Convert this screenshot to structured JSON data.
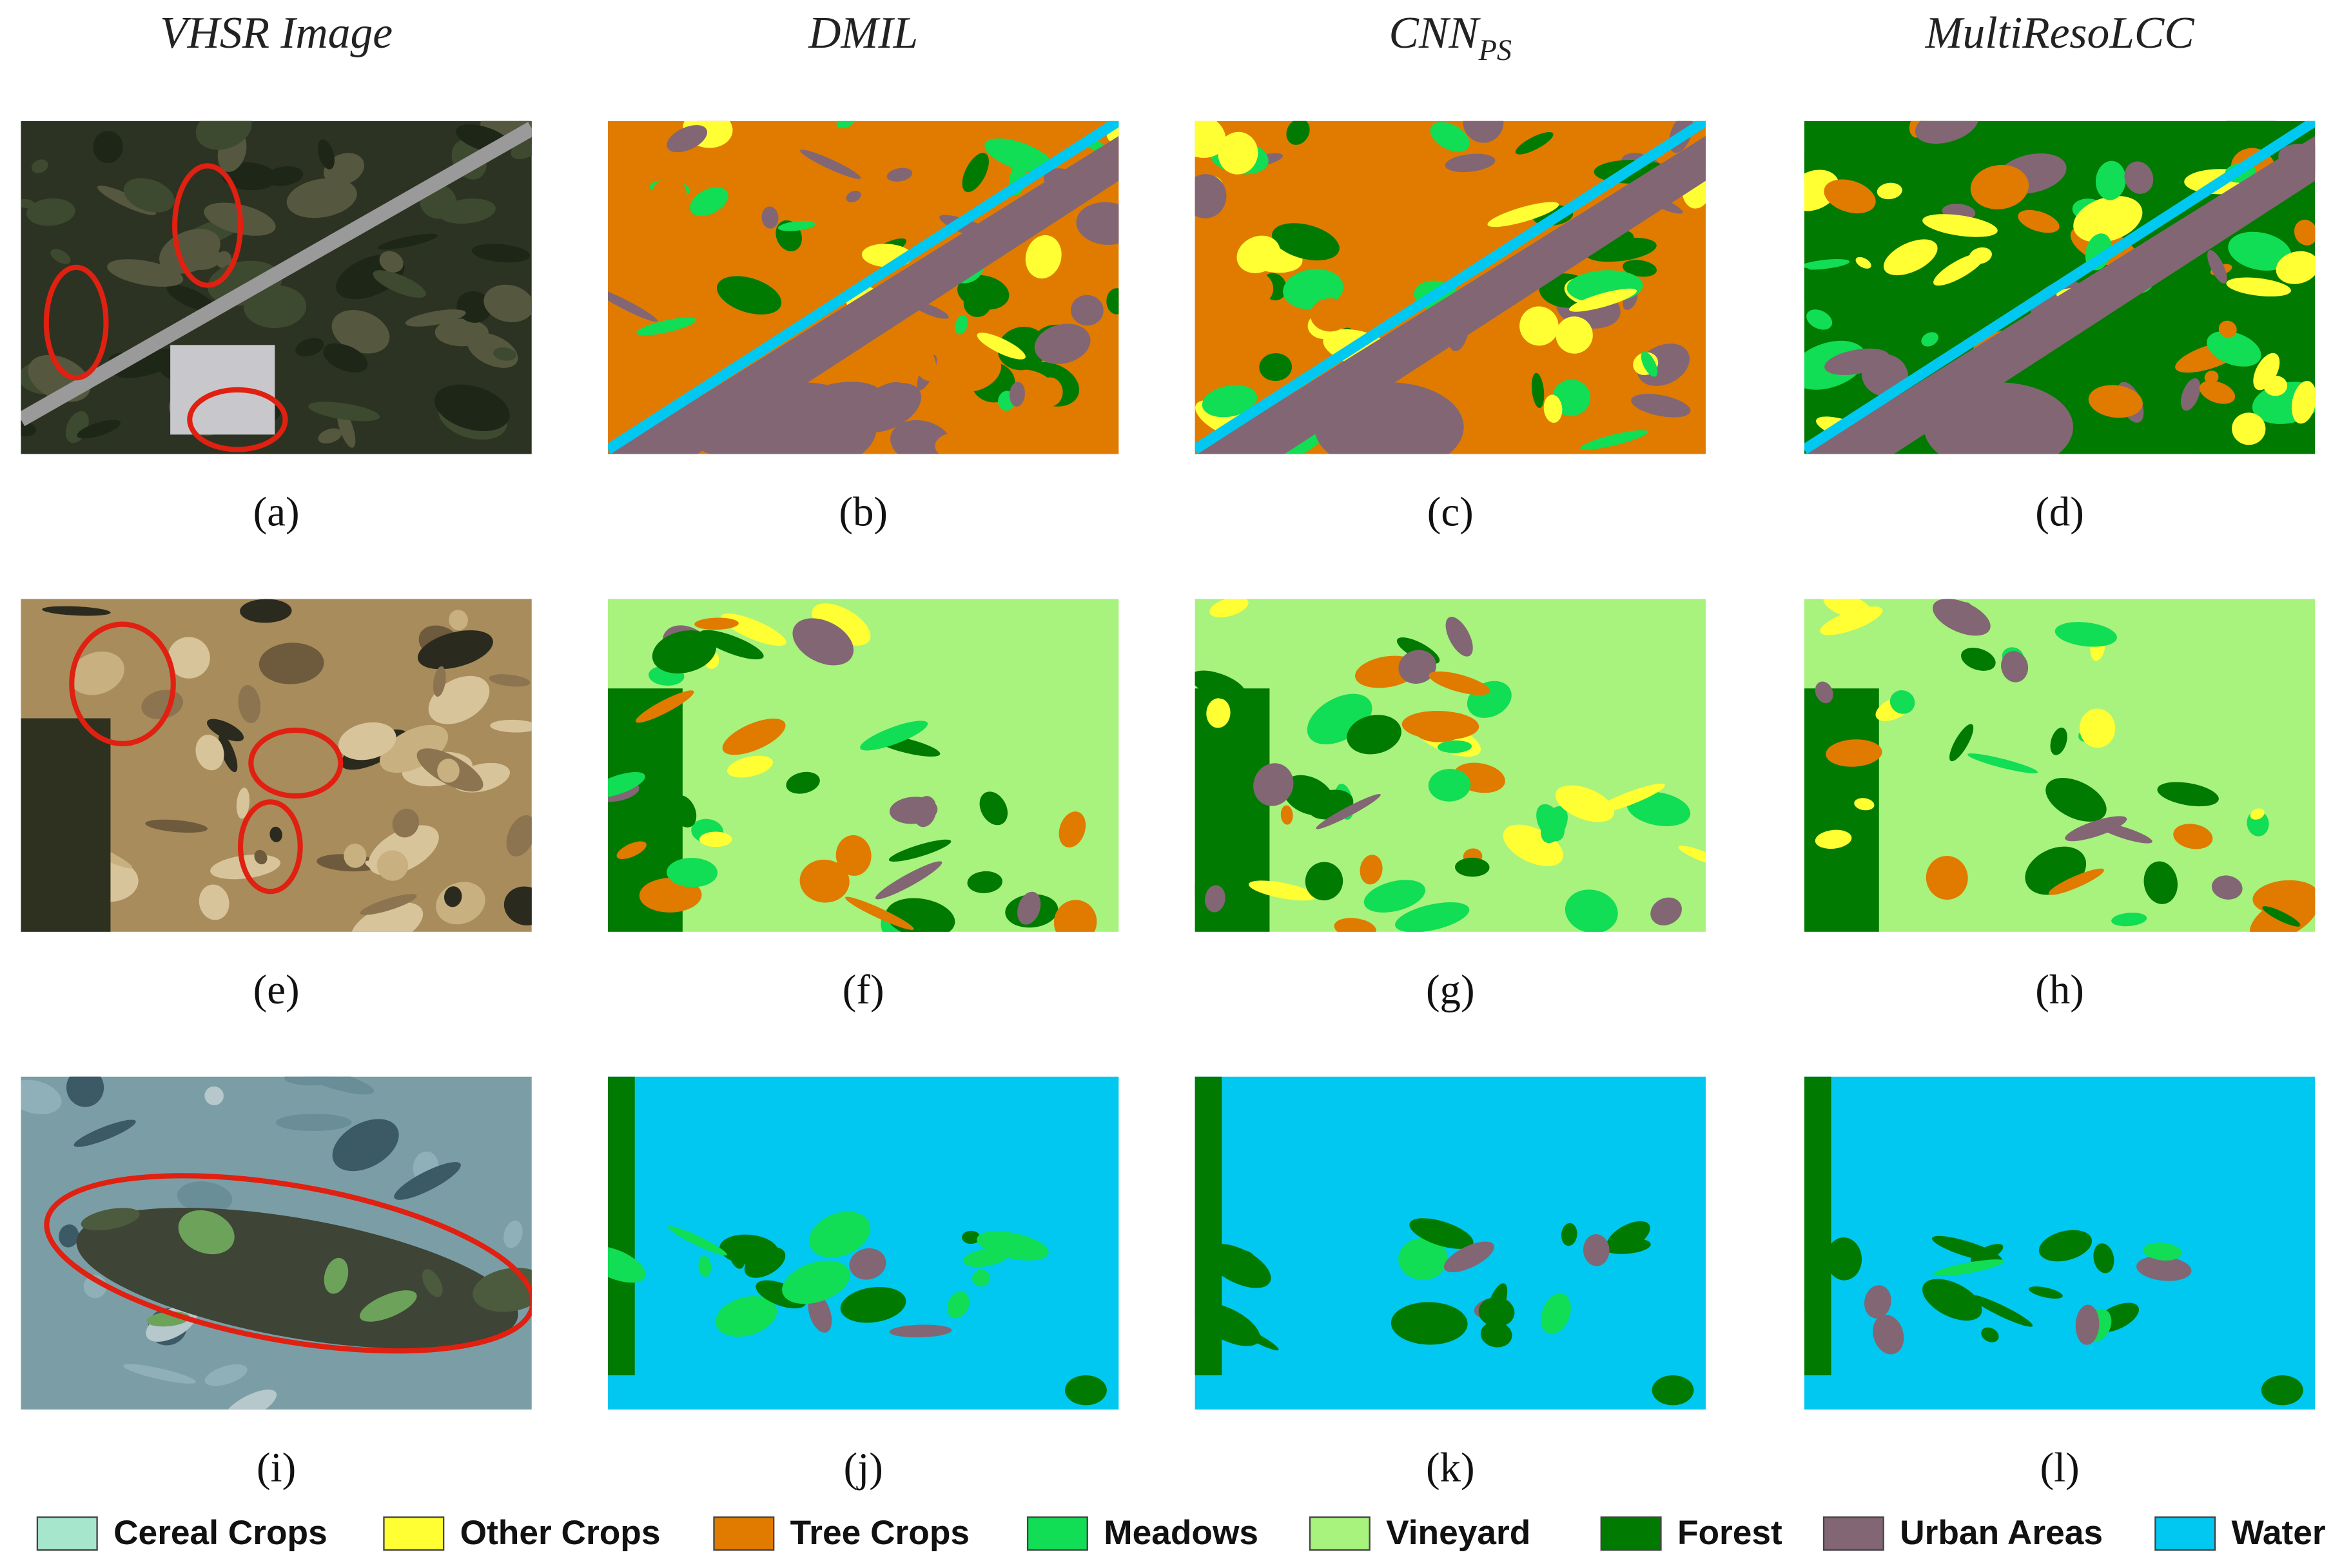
{
  "columns": [
    {
      "text": "VHSR Image"
    },
    {
      "text": "DMIL"
    },
    {
      "text": "CNN",
      "sub": "PS"
    },
    {
      "text": "MultiResoLCC"
    }
  ],
  "panels": [
    "(a)",
    "(b)",
    "(c)",
    "(d)",
    "(e)",
    "(f)",
    "(g)",
    "(h)",
    "(i)",
    "(j)",
    "(k)",
    "(l)"
  ],
  "legend": [
    {
      "name": "Cereal Crops",
      "color": "#a6e6cc"
    },
    {
      "name": "Other Crops",
      "color": "#ffff33"
    },
    {
      "name": "Tree Crops",
      "color": "#e07b00"
    },
    {
      "name": "Meadows",
      "color": "#11dd55"
    },
    {
      "name": "Vineyard",
      "color": "#a8f27e"
    },
    {
      "name": "Forest",
      "color": "#007a00"
    },
    {
      "name": "Urban Areas",
      "color": "#826674"
    },
    {
      "name": "Water",
      "color": "#00c8f0"
    }
  ]
}
